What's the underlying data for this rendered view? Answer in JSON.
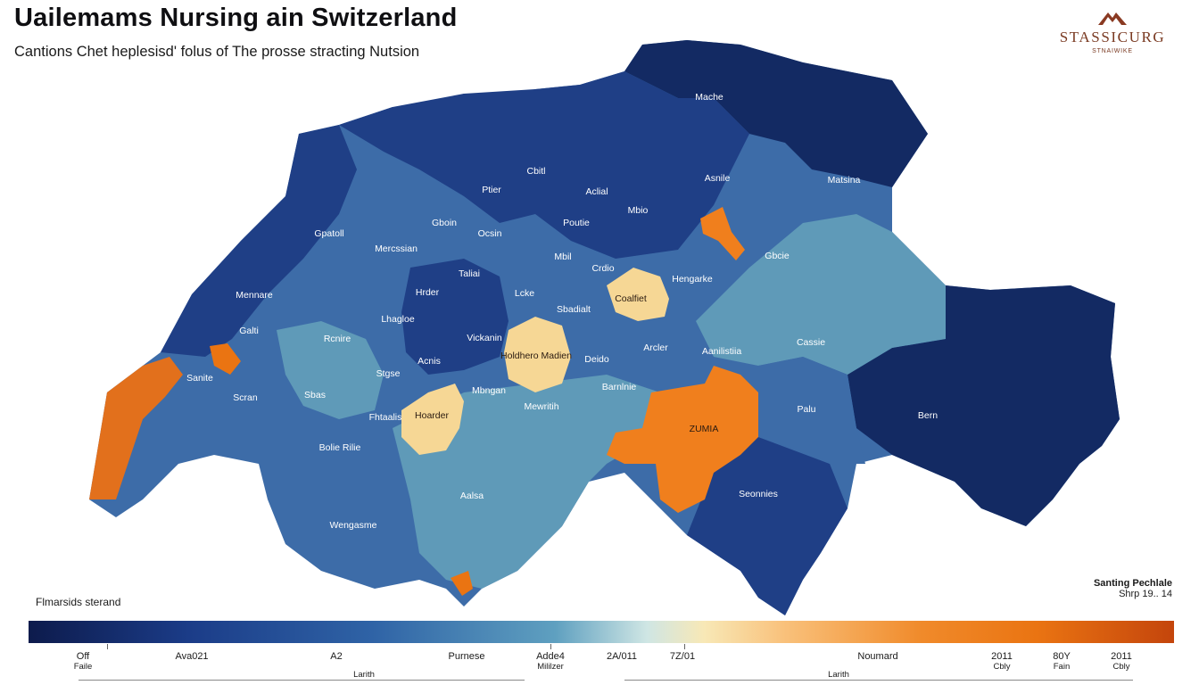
{
  "header": {
    "title": "Uailemams Nursing ain Switzerland",
    "subtitle": "Cantions Chet heplesisd' folus of The prosse stracting Nutsion"
  },
  "brand": {
    "name": "STASSICURG",
    "tagline": "STNAIWIKE",
    "logo_icon": "mountain-logo-icon",
    "color": "#7a3a22"
  },
  "map": {
    "regions": [
      {
        "label": "Mache",
        "level": "dark-navy"
      },
      {
        "label": "Cbitl",
        "level": "navy"
      },
      {
        "label": "Ptier",
        "level": "navy"
      },
      {
        "label": "Aclial",
        "level": "navy"
      },
      {
        "label": "Asnile",
        "level": "medium-blue"
      },
      {
        "label": "Matsina",
        "level": "navy"
      },
      {
        "label": "Mbio",
        "level": "navy"
      },
      {
        "label": "Gboin",
        "level": "medium-blue"
      },
      {
        "label": "Gpatoll",
        "level": "medium-blue"
      },
      {
        "label": "Ocsin",
        "level": "medium-blue"
      },
      {
        "label": "Poutie",
        "level": "medium-blue"
      },
      {
        "label": "Mbil",
        "level": "light-blue"
      },
      {
        "label": "Mercssian",
        "level": "medium-blue"
      },
      {
        "label": "Crdio",
        "level": "navy"
      },
      {
        "label": "Hengarke",
        "level": "navy"
      },
      {
        "label": "Gbcie",
        "level": "medium-blue"
      },
      {
        "label": "Mennare",
        "level": "navy"
      },
      {
        "label": "Taliai",
        "level": "medium-blue"
      },
      {
        "label": "Hrder",
        "level": "navy"
      },
      {
        "label": "Lcke",
        "level": "navy"
      },
      {
        "label": "Coalfiet",
        "level": "cream"
      },
      {
        "label": "Sbadialt",
        "level": "light-blue"
      },
      {
        "label": "Galti",
        "level": "navy"
      },
      {
        "label": "Lhagloe",
        "level": "medium-blue"
      },
      {
        "label": "Rcnire",
        "level": "medium-blue"
      },
      {
        "label": "Vickanin",
        "level": "navy"
      },
      {
        "label": "Holdhero Madien",
        "level": "cream"
      },
      {
        "label": "Arcler",
        "level": "medium-blue"
      },
      {
        "label": "Cassie",
        "level": "light-blue"
      },
      {
        "label": "Aanilistiia",
        "level": "light-blue"
      },
      {
        "label": "Sanite",
        "level": "medium-blue"
      },
      {
        "label": "Stgse",
        "level": "light-blue"
      },
      {
        "label": "Acnis",
        "level": "navy"
      },
      {
        "label": "Deido",
        "level": "light-blue"
      },
      {
        "label": "Scran",
        "level": "medium-blue"
      },
      {
        "label": "Sbas",
        "level": "medium-blue"
      },
      {
        "label": "Barnlnie",
        "level": "light-blue"
      },
      {
        "label": "Mbngan",
        "level": "light-blue"
      },
      {
        "label": "Fhtaalis",
        "level": "light-blue"
      },
      {
        "label": "Hoarder",
        "level": "cream"
      },
      {
        "label": "Mewritih",
        "level": "light-blue"
      },
      {
        "label": "Palu",
        "level": "medium-blue"
      },
      {
        "label": "Bern",
        "level": "dark-navy"
      },
      {
        "label": "ZUMIA",
        "level": "orange"
      },
      {
        "label": "Bolie Rilie",
        "level": "light-blue"
      },
      {
        "label": "Aalsa",
        "level": "light-blue"
      },
      {
        "label": "Seonnies",
        "level": "navy"
      },
      {
        "label": "Wengasme",
        "level": "medium-blue"
      }
    ],
    "colors": {
      "dark-navy": "#132a63",
      "navy": "#1f3f86",
      "medium-blue": "#3d6ca8",
      "light-blue": "#5f9ab8",
      "cream": "#f6d795",
      "orange": "#f07f1d"
    }
  },
  "map_caption": "Flmarsids sterand",
  "scale_info": {
    "title": "Santing Pechlale",
    "subtitle": "Shrp 19.. 14"
  },
  "legend": {
    "labels": [
      {
        "text": "Off",
        "sub": "Faile"
      },
      {
        "text": "Ava021",
        "sub": ""
      },
      {
        "text": "A2",
        "sub": ""
      },
      {
        "text": "Purnese",
        "sub": ""
      },
      {
        "text": "Adde4",
        "sub": "Mililzer"
      },
      {
        "text": "2A/011",
        "sub": ""
      },
      {
        "text": "7Z/01",
        "sub": ""
      },
      {
        "text": "Noumard",
        "sub": ""
      },
      {
        "text": "2011",
        "sub": "Cbly"
      },
      {
        "text": "80Y",
        "sub": "Fain"
      },
      {
        "text": "2011",
        "sub": "Cbly"
      }
    ],
    "axis_labels": [
      "Larith",
      "Larith"
    ]
  }
}
